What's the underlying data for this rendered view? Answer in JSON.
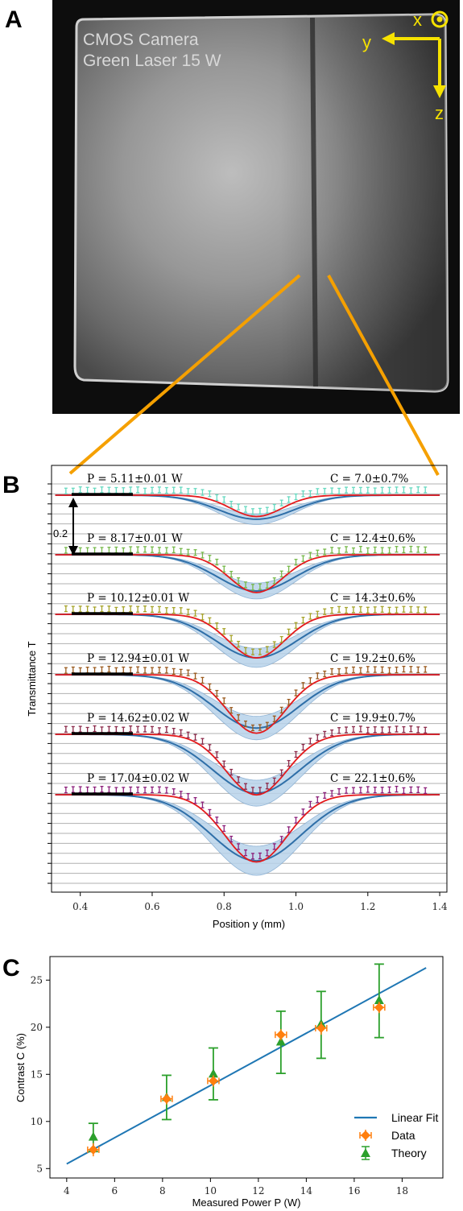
{
  "panels": {
    "a": "A",
    "b": "B",
    "c": "C"
  },
  "camera_panel": {
    "line1": "CMOS Camera",
    "line2": "Green Laser 15 W",
    "axis_x": "x",
    "axis_y": "y",
    "axis_z": "z",
    "colors": {
      "background": "#0d0d0d",
      "frame": "#c8c8c8",
      "zoom_lines": "#f5a000",
      "axes": "#f6e200"
    }
  },
  "chart_data": [
    {
      "id": "B",
      "type": "line",
      "xlabel": "Position y (mm)",
      "ylabel": "Transmittance T",
      "xlim": [
        0.32,
        1.42
      ],
      "xticks": [
        0.4,
        0.6,
        0.8,
        1.0,
        1.2,
        1.4
      ],
      "xtick_labels": [
        "0.4",
        "0.6",
        "0.8",
        "1.0",
        "1.2",
        "1.4"
      ],
      "scale_bar_label": "0.2",
      "grid": true,
      "colors": {
        "fit": "#e41a1c",
        "theory": "#2f6fa8",
        "band": "#b8d3ea",
        "grid": "#b0b0b0"
      },
      "traces": [
        {
          "power_label": "P = 5.11±0.01 W",
          "contrast_label": "C = 7.0±0.7%",
          "data_color": "#66d9c0",
          "contrast_pct": 7.0,
          "theory_depth_pct": 8.3
        },
        {
          "power_label": "P = 8.17±0.01 W",
          "contrast_label": "C = 12.4±0.6%",
          "data_color": "#76b84a",
          "contrast_pct": 12.4,
          "theory_depth_pct": 12.5
        },
        {
          "power_label": "P = 10.12±0.01 W",
          "contrast_label": "C = 14.3±0.6%",
          "data_color": "#a6a32a",
          "contrast_pct": 14.3,
          "theory_depth_pct": 15.0
        },
        {
          "power_label": "P = 12.94±0.01 W",
          "contrast_label": "C = 19.2±0.6%",
          "data_color": "#9a5a1e",
          "contrast_pct": 19.2,
          "theory_depth_pct": 18.4
        },
        {
          "power_label": "P = 14.62±0.02 W",
          "contrast_label": "C = 19.9±0.7%",
          "data_color": "#8b2a4a",
          "contrast_pct": 19.9,
          "theory_depth_pct": 20.3
        },
        {
          "power_label": "P = 17.04±0.02 W",
          "contrast_label": "C = 22.1±0.6%",
          "data_color": "#8b1f7a",
          "contrast_pct": 22.1,
          "theory_depth_pct": 22.8
        }
      ]
    },
    {
      "id": "C",
      "type": "scatter",
      "xlabel": "Measured Power P (W)",
      "ylabel": "Contrast C (%)",
      "xlim": [
        3.3,
        19.7
      ],
      "ylim": [
        4.0,
        27.5
      ],
      "xticks": [
        4,
        6,
        8,
        10,
        12,
        14,
        16,
        18
      ],
      "yticks": [
        5,
        10,
        15,
        20,
        25
      ],
      "legend_position": "lower-right",
      "linear_fit": {
        "name": "Linear Fit",
        "color": "#1f77b4",
        "x": [
          4,
          19
        ],
        "y": [
          5.5,
          26.3
        ]
      },
      "series": [
        {
          "name": "Data",
          "color": "#ff7f0e",
          "x": [
            5.11,
            8.17,
            10.12,
            12.94,
            14.62,
            17.04
          ],
          "y": [
            7.0,
            12.4,
            14.3,
            19.2,
            19.9,
            22.1
          ],
          "xerr": [
            0.01,
            0.01,
            0.01,
            0.01,
            0.02,
            0.02
          ],
          "yerr": [
            0.7,
            0.6,
            0.6,
            0.6,
            0.7,
            0.6
          ]
        },
        {
          "name": "Theory",
          "color": "#2ca02c",
          "x": [
            5.11,
            8.17,
            10.12,
            12.94,
            14.62,
            17.04
          ],
          "y": [
            8.3,
            12.5,
            15.0,
            18.4,
            20.3,
            22.8
          ],
          "ylow": [
            6.8,
            10.2,
            12.3,
            15.1,
            16.7,
            18.9
          ],
          "yhigh": [
            9.8,
            14.9,
            17.8,
            21.7,
            23.8,
            26.7
          ]
        }
      ]
    }
  ]
}
